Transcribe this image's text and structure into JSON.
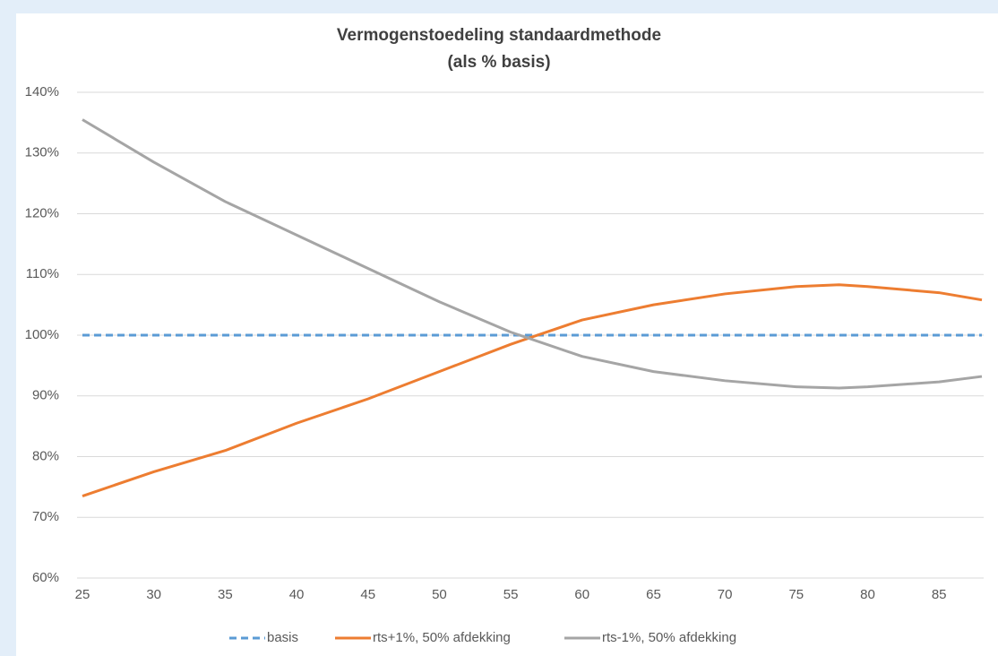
{
  "chart_data": {
    "type": "line",
    "title": "Vermogenstoedeling standaardmethode",
    "subtitle": "(als % basis)",
    "xlim": [
      25,
      88
    ],
    "xticks": [
      25,
      30,
      35,
      40,
      45,
      50,
      55,
      60,
      65,
      70,
      75,
      80,
      85
    ],
    "ylim": [
      60,
      140
    ],
    "yticks": [
      {
        "value": 60,
        "label": "60%"
      },
      {
        "value": 70,
        "label": "70%"
      },
      {
        "value": 80,
        "label": "80%"
      },
      {
        "value": 90,
        "label": "90%"
      },
      {
        "value": 100,
        "label": "100%"
      },
      {
        "value": 110,
        "label": "110%"
      },
      {
        "value": 120,
        "label": "120%"
      },
      {
        "value": 130,
        "label": "130%"
      },
      {
        "value": 140,
        "label": "140%"
      }
    ],
    "grid": true,
    "legend": "bottom",
    "series": [
      {
        "name": "basis",
        "color": "#5b9bd5",
        "dashed": true,
        "x": [
          25,
          88
        ],
        "values": [
          100,
          100
        ]
      },
      {
        "name": "rts+1%, 50% afdekking",
        "color": "#ed7d31",
        "x": [
          25,
          30,
          35,
          40,
          45,
          50,
          55,
          60,
          65,
          70,
          75,
          78,
          80,
          85,
          88
        ],
        "values": [
          73.5,
          77.5,
          81,
          85.5,
          89.5,
          94,
          98.5,
          102.5,
          105,
          106.8,
          108,
          108.3,
          108,
          107,
          105.8
        ]
      },
      {
        "name": "rts-1%, 50% afdekking",
        "color": "#a5a5a5",
        "x": [
          25,
          30,
          35,
          40,
          45,
          50,
          55,
          60,
          65,
          70,
          75,
          78,
          80,
          85,
          88
        ],
        "values": [
          135.5,
          128.5,
          122,
          116.5,
          111,
          105.5,
          100.5,
          96.5,
          94,
          92.5,
          91.5,
          91.3,
          91.5,
          92.3,
          93.2
        ]
      }
    ]
  }
}
